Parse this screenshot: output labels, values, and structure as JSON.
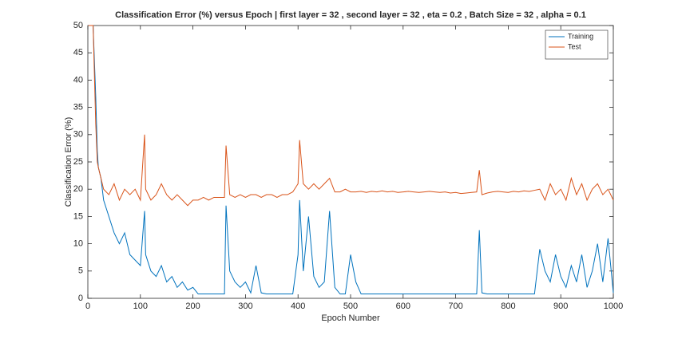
{
  "chart_data": {
    "type": "line",
    "title": "Classification Error (%) versus Epoch | first layer = 32 , second layer = 32 , eta = 0.2 , Batch Size = 32 , alpha = 0.1",
    "x_label": "Epoch Number",
    "y_label": "Classification Error (%)",
    "xlim": [
      0,
      1000
    ],
    "xticks": [
      0,
      100,
      200,
      300,
      400,
      500,
      600,
      700,
      800,
      900,
      1000
    ],
    "ylim": [
      0,
      50
    ],
    "yticks": [
      0,
      5,
      10,
      15,
      20,
      25,
      30,
      35,
      40,
      45,
      50
    ],
    "grid": false,
    "legend": "northeast",
    "x": [
      1,
      5,
      10,
      15,
      18,
      20,
      25,
      30,
      40,
      50,
      60,
      70,
      80,
      90,
      100,
      108,
      110,
      120,
      130,
      140,
      150,
      160,
      170,
      180,
      190,
      200,
      210,
      220,
      230,
      240,
      250,
      260,
      263,
      270,
      280,
      290,
      300,
      310,
      320,
      330,
      340,
      350,
      360,
      370,
      380,
      390,
      400,
      403,
      410,
      420,
      430,
      440,
      450,
      460,
      470,
      480,
      490,
      500,
      510,
      520,
      530,
      540,
      550,
      560,
      570,
      580,
      590,
      600,
      610,
      620,
      630,
      640,
      650,
      660,
      670,
      680,
      690,
      700,
      710,
      720,
      730,
      740,
      745,
      750,
      760,
      770,
      780,
      790,
      800,
      810,
      820,
      830,
      840,
      850,
      860,
      870,
      880,
      890,
      900,
      910,
      920,
      930,
      940,
      950,
      960,
      970,
      980,
      990,
      1000
    ],
    "series": [
      {
        "name": "Training",
        "color": "#0072bd",
        "values": [
          50,
          50,
          50,
          37,
          27,
          24,
          22,
          18,
          15,
          12,
          10,
          12,
          8,
          7,
          6,
          16,
          8,
          5,
          4,
          6,
          3,
          4,
          2,
          3,
          1.5,
          2,
          0.8,
          0.8,
          0.8,
          0.8,
          0.8,
          0.8,
          17,
          5,
          3,
          2,
          3,
          1,
          6,
          1,
          0.8,
          0.8,
          0.8,
          0.8,
          0.8,
          0.8,
          8,
          18,
          5,
          15,
          4,
          2,
          3,
          16,
          2,
          0.8,
          0.8,
          8,
          3,
          0.8,
          0.8,
          0.8,
          0.8,
          0.8,
          0.8,
          0.8,
          0.8,
          0.8,
          0.8,
          0.8,
          0.8,
          0.8,
          0.8,
          0.8,
          0.8,
          0.8,
          0.8,
          0.8,
          0.8,
          0.8,
          0.8,
          0.8,
          12.5,
          1,
          0.8,
          0.8,
          0.8,
          0.8,
          0.8,
          0.8,
          0.8,
          0.8,
          0.8,
          0.8,
          9,
          5,
          3,
          8,
          4,
          2,
          6,
          3,
          8,
          2,
          5,
          10,
          3,
          11,
          1
        ]
      },
      {
        "name": "Test",
        "color": "#d95319",
        "values": [
          50,
          50,
          50,
          32,
          25,
          24,
          22,
          20,
          19,
          21,
          18,
          20,
          19,
          20,
          18,
          30,
          20,
          18,
          19,
          21,
          19,
          18,
          19,
          18,
          17,
          18,
          18,
          18.5,
          18,
          18.5,
          18.5,
          18.5,
          28,
          19,
          18.5,
          19,
          18.5,
          19,
          19,
          18.5,
          19,
          19,
          18.5,
          19,
          19,
          19.5,
          21,
          29,
          21,
          20,
          21,
          20,
          21,
          22,
          19.5,
          19.5,
          20,
          19.5,
          19.5,
          19.6,
          19.4,
          19.6,
          19.5,
          19.7,
          19.5,
          19.6,
          19.4,
          19.5,
          19.6,
          19.5,
          19.4,
          19.5,
          19.6,
          19.5,
          19.4,
          19.5,
          19.3,
          19.4,
          19.2,
          19.3,
          19.4,
          19.5,
          23.5,
          19,
          19.3,
          19.5,
          19.6,
          19.5,
          19.4,
          19.6,
          19.5,
          19.7,
          19.6,
          19.8,
          20,
          18,
          21,
          19,
          20,
          18,
          22,
          19,
          21,
          18,
          20,
          21,
          19,
          20,
          18
        ]
      }
    ]
  }
}
